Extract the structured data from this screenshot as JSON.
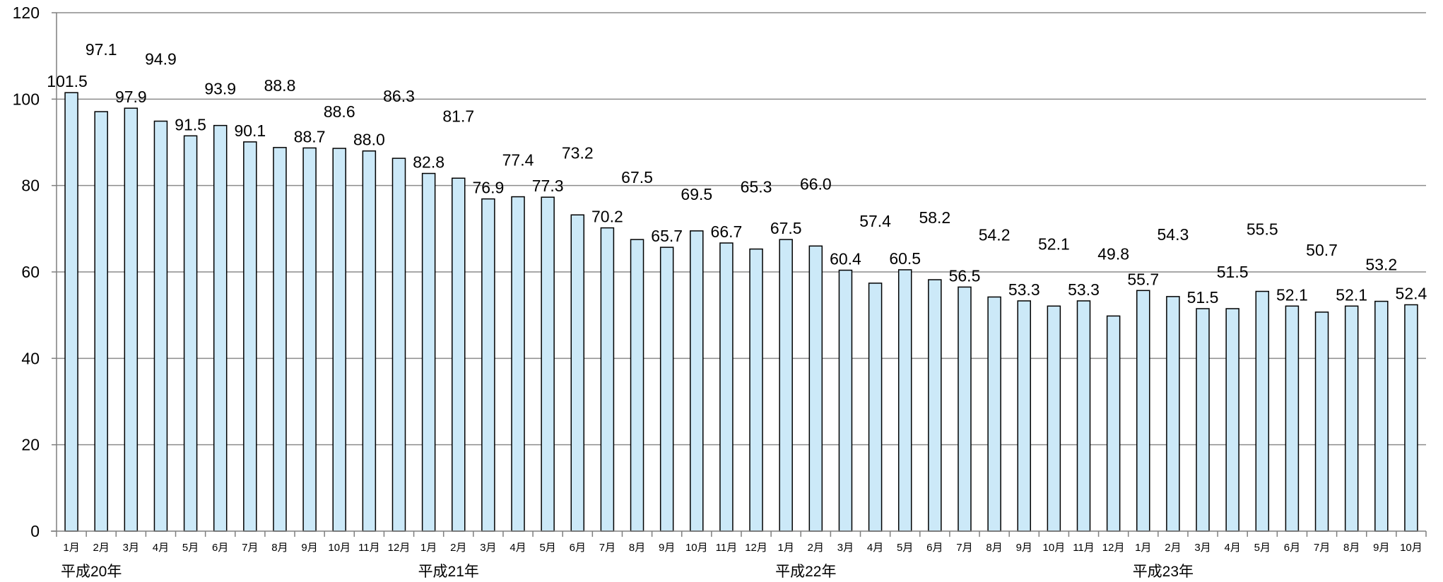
{
  "chart_data": {
    "type": "bar",
    "title": "",
    "xlabel": "",
    "ylabel": "",
    "ylim": [
      0,
      120
    ],
    "yticks": [
      0,
      20,
      40,
      60,
      80,
      100,
      120
    ],
    "grid": true,
    "legend": "none",
    "colors": {
      "bar_fill": "#cce9f8",
      "bar_stroke": "#000000",
      "grid": "#8c8c8c",
      "axis": "#7f7f7f"
    },
    "categories": [
      "1月",
      "2月",
      "3月",
      "4月",
      "5月",
      "6月",
      "7月",
      "8月",
      "9月",
      "10月",
      "11月",
      "12月",
      "1月",
      "2月",
      "3月",
      "4月",
      "5月",
      "6月",
      "7月",
      "8月",
      "9月",
      "10月",
      "11月",
      "12月",
      "1月",
      "2月",
      "3月",
      "4月",
      "5月",
      "6月",
      "7月",
      "8月",
      "9月",
      "10月",
      "11月",
      "12月",
      "1月",
      "2月",
      "3月",
      "4月",
      "5月",
      "6月",
      "7月",
      "8月",
      "9月",
      "10月"
    ],
    "values": [
      101.5,
      97.1,
      97.9,
      94.9,
      91.5,
      93.9,
      90.1,
      88.8,
      88.7,
      88.6,
      88.0,
      86.3,
      82.8,
      81.7,
      76.9,
      77.4,
      77.3,
      73.2,
      70.2,
      67.5,
      65.7,
      69.5,
      66.7,
      65.3,
      67.5,
      66.0,
      60.4,
      57.4,
      60.5,
      58.2,
      56.5,
      54.2,
      53.3,
      52.1,
      53.3,
      49.8,
      55.7,
      54.3,
      51.5,
      51.5,
      55.5,
      52.1,
      50.7,
      52.1,
      53.2,
      52.4
    ],
    "value_labels": [
      "101.5",
      "97.1",
      "97.9",
      "94.9",
      "91.5",
      "93.9",
      "90.1",
      "88.8",
      "88.7",
      "88.6",
      "88.0",
      "86.3",
      "82.8",
      "81.7",
      "76.9",
      "77.4",
      "77.3",
      "73.2",
      "70.2",
      "67.5",
      "65.7",
      "69.5",
      "66.7",
      "65.3",
      "67.5",
      "66.0",
      "60.4",
      "57.4",
      "60.5",
      "58.2",
      "56.5",
      "54.2",
      "53.3",
      "52.1",
      "53.3",
      "49.8",
      "55.7",
      "54.3",
      "51.5",
      "51.5",
      "55.5",
      "52.1",
      "50.7",
      "52.1",
      "53.2",
      "52.4"
    ],
    "year_groups": [
      {
        "label": "平成20年",
        "start": 0
      },
      {
        "label": "平成21年",
        "start": 12
      },
      {
        "label": "平成22年",
        "start": 24
      },
      {
        "label": "平成23年",
        "start": 36
      }
    ]
  }
}
